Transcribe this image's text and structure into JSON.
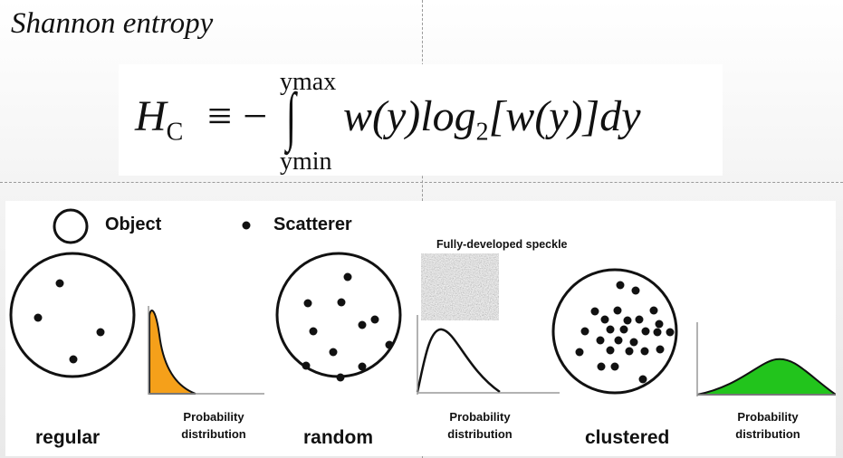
{
  "title": "Shannon entropy",
  "formula": {
    "lhs_symbol": "H",
    "lhs_subscript": "C",
    "relation": "≡ −",
    "upper_limit": "ymax",
    "lower_limit": "ymin",
    "integrand_part1": "w(y)log",
    "log_base": "2",
    "integrand_part2": "[w(y)]dy"
  },
  "legend": {
    "object_label": "Object",
    "scatterer_label": "Scatterer"
  },
  "speckle": {
    "title": "Fully-developed speckle"
  },
  "categories": [
    {
      "label": "regular",
      "distribution_label_line1": "Probability",
      "distribution_label_line2": "distribution",
      "fill_color": "#f5a01a"
    },
    {
      "label": "random",
      "distribution_label_line1": "Probability",
      "distribution_label_line2": "distribution",
      "fill_color": "none"
    },
    {
      "label": "clustered",
      "distribution_label_line1": "Probability",
      "distribution_label_line2": "distribution",
      "fill_color": "#22c41c"
    }
  ]
}
